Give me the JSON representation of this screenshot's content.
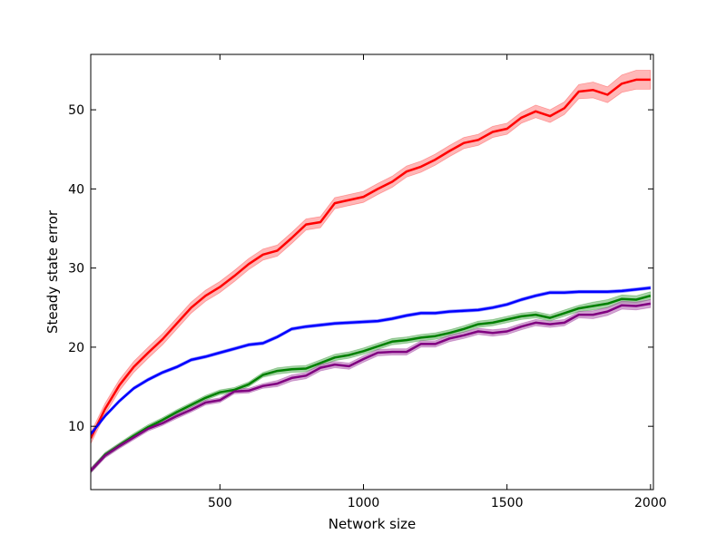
{
  "chart_data": {
    "type": "line",
    "title": "",
    "xlabel": "Network size",
    "ylabel": "Steady state error",
    "xlim": [
      50,
      2010
    ],
    "ylim": [
      2,
      57
    ],
    "xticks": [
      500,
      1000,
      1500,
      2000
    ],
    "yticks": [
      10,
      20,
      30,
      40,
      50
    ],
    "grid": false,
    "legend": "none",
    "series": [
      {
        "color": "#ff0000",
        "band_color": "#ff9999",
        "x": [
          50,
          100,
          150,
          200,
          250,
          300,
          350,
          400,
          450,
          500,
          550,
          600,
          650,
          700,
          750,
          800,
          850,
          900,
          950,
          1000,
          1050,
          1100,
          1150,
          1200,
          1250,
          1300,
          1350,
          1400,
          1450,
          1500,
          1550,
          1600,
          1650,
          1700,
          1750,
          1800,
          1850,
          1900,
          1950,
          2000
        ],
        "values": [
          8.5,
          12.2,
          15.2,
          17.5,
          19.3,
          21.0,
          23.0,
          25.0,
          26.5,
          27.6,
          29.0,
          30.5,
          31.7,
          32.2,
          33.8,
          35.5,
          35.8,
          38.2,
          38.6,
          39.0,
          40.0,
          40.9,
          42.2,
          42.8,
          43.7,
          44.8,
          45.8,
          46.2,
          47.2,
          47.6,
          49.0,
          49.8,
          49.2,
          50.2,
          52.3,
          52.5,
          51.9,
          53.3,
          53.8,
          53.8
        ],
        "band": [
          0.7,
          0.7,
          0.7,
          0.7,
          0.7,
          0.7,
          0.7,
          0.7,
          0.7,
          0.7,
          0.7,
          0.7,
          0.7,
          0.7,
          0.7,
          0.7,
          0.7,
          0.7,
          0.7,
          0.7,
          0.7,
          0.7,
          0.7,
          0.7,
          0.7,
          0.7,
          0.7,
          0.7,
          0.7,
          0.7,
          0.7,
          0.8,
          0.8,
          0.8,
          0.9,
          1.0,
          1.0,
          1.1,
          1.2,
          1.2
        ]
      },
      {
        "color": "#0000ff",
        "band_color": "#9999ff",
        "x": [
          50,
          100,
          150,
          200,
          250,
          300,
          350,
          400,
          450,
          500,
          550,
          600,
          650,
          700,
          750,
          800,
          850,
          900,
          950,
          1000,
          1050,
          1100,
          1150,
          1200,
          1250,
          1300,
          1350,
          1400,
          1450,
          1500,
          1550,
          1600,
          1650,
          1700,
          1750,
          1800,
          1850,
          1900,
          1950,
          2000
        ],
        "values": [
          9.0,
          11.3,
          13.2,
          14.8,
          15.9,
          16.8,
          17.5,
          18.4,
          18.8,
          19.3,
          19.8,
          20.3,
          20.5,
          21.3,
          22.3,
          22.6,
          22.8,
          23.0,
          23.1,
          23.2,
          23.3,
          23.6,
          24.0,
          24.3,
          24.3,
          24.5,
          24.6,
          24.7,
          25.0,
          25.4,
          26.0,
          26.5,
          26.9,
          26.9,
          27.0,
          27.0,
          27.0,
          27.1,
          27.3,
          27.5
        ],
        "band": [
          0.2,
          0.2,
          0.2,
          0.2,
          0.2,
          0.2,
          0.2,
          0.2,
          0.2,
          0.2,
          0.2,
          0.2,
          0.2,
          0.2,
          0.2,
          0.2,
          0.2,
          0.2,
          0.2,
          0.2,
          0.2,
          0.2,
          0.2,
          0.2,
          0.2,
          0.2,
          0.2,
          0.2,
          0.2,
          0.2,
          0.2,
          0.2,
          0.2,
          0.2,
          0.2,
          0.2,
          0.2,
          0.2,
          0.2,
          0.2
        ]
      },
      {
        "color": "#008000",
        "band_color": "#80c080",
        "x": [
          50,
          100,
          150,
          200,
          250,
          300,
          350,
          400,
          450,
          500,
          550,
          600,
          650,
          700,
          750,
          800,
          850,
          900,
          950,
          1000,
          1050,
          1100,
          1150,
          1200,
          1250,
          1300,
          1350,
          1400,
          1450,
          1500,
          1550,
          1600,
          1650,
          1700,
          1750,
          1800,
          1850,
          1900,
          1950,
          2000
        ],
        "values": [
          4.4,
          6.4,
          7.6,
          8.8,
          9.9,
          10.8,
          11.8,
          12.7,
          13.6,
          14.3,
          14.6,
          15.3,
          16.5,
          17.0,
          17.2,
          17.3,
          18.0,
          18.7,
          19.0,
          19.5,
          20.1,
          20.7,
          20.9,
          21.2,
          21.4,
          21.8,
          22.3,
          22.9,
          23.1,
          23.5,
          23.9,
          24.1,
          23.7,
          24.3,
          24.9,
          25.2,
          25.5,
          26.1,
          26.0,
          26.5
        ],
        "band": [
          0.3,
          0.3,
          0.3,
          0.3,
          0.3,
          0.3,
          0.3,
          0.3,
          0.3,
          0.3,
          0.3,
          0.3,
          0.3,
          0.4,
          0.4,
          0.4,
          0.4,
          0.4,
          0.4,
          0.4,
          0.4,
          0.4,
          0.4,
          0.4,
          0.4,
          0.4,
          0.4,
          0.4,
          0.4,
          0.4,
          0.4,
          0.4,
          0.4,
          0.4,
          0.4,
          0.5,
          0.5,
          0.5,
          0.5,
          0.5
        ]
      },
      {
        "color": "#800080",
        "band_color": "#c080c0",
        "x": [
          50,
          100,
          150,
          200,
          250,
          300,
          350,
          400,
          450,
          500,
          550,
          600,
          650,
          700,
          750,
          800,
          850,
          900,
          950,
          1000,
          1050,
          1100,
          1150,
          1200,
          1250,
          1300,
          1350,
          1400,
          1450,
          1500,
          1550,
          1600,
          1650,
          1700,
          1750,
          1800,
          1850,
          1900,
          1950,
          2000
        ],
        "values": [
          4.4,
          6.3,
          7.5,
          8.6,
          9.7,
          10.4,
          11.3,
          12.1,
          13.0,
          13.3,
          14.4,
          14.5,
          15.1,
          15.4,
          16.1,
          16.4,
          17.4,
          17.8,
          17.6,
          18.5,
          19.3,
          19.4,
          19.4,
          20.4,
          20.4,
          21.1,
          21.5,
          22.0,
          21.8,
          22.0,
          22.6,
          23.1,
          22.9,
          23.1,
          24.1,
          24.1,
          24.5,
          25.3,
          25.2,
          25.5
        ],
        "band": [
          0.3,
          0.3,
          0.3,
          0.3,
          0.3,
          0.3,
          0.3,
          0.3,
          0.3,
          0.3,
          0.3,
          0.3,
          0.3,
          0.4,
          0.4,
          0.4,
          0.4,
          0.4,
          0.4,
          0.4,
          0.4,
          0.4,
          0.4,
          0.4,
          0.4,
          0.4,
          0.4,
          0.4,
          0.4,
          0.4,
          0.4,
          0.4,
          0.4,
          0.4,
          0.4,
          0.5,
          0.5,
          0.5,
          0.5,
          0.5
        ]
      }
    ]
  }
}
